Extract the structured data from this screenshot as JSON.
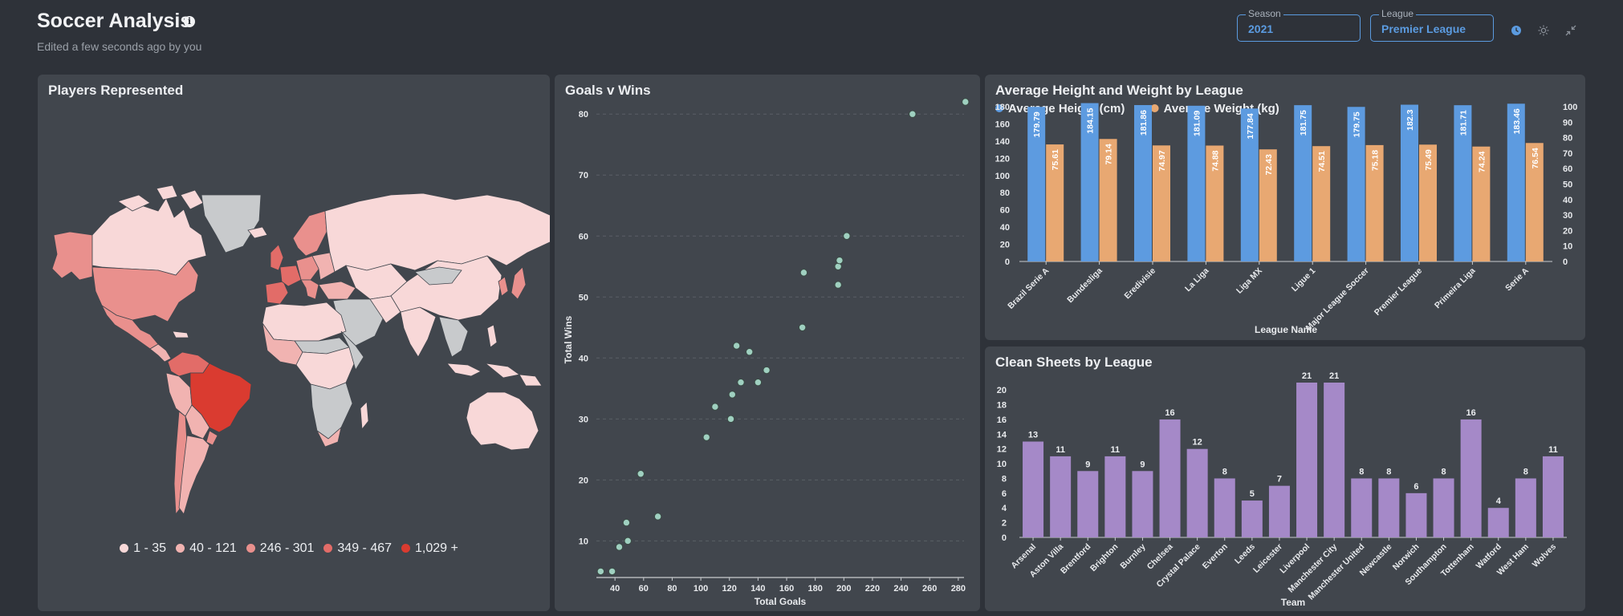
{
  "header": {
    "title": "Soccer Analysis",
    "subtitle": "Edited a few seconds ago by you",
    "info_icon": "info-icon",
    "filters": [
      {
        "label": "Season",
        "value": "2021"
      },
      {
        "label": "League",
        "value": "Premier League"
      }
    ],
    "icons": [
      "clock-icon",
      "sun-icon",
      "collapse-icon"
    ]
  },
  "colors": {
    "background": "#2e3239",
    "panel": "#41464d",
    "accent": "#5b9be0",
    "height_bar": "#5d9be0",
    "weight_bar": "#e8a872",
    "clean_sheets_bar": "#a589c8",
    "scatter_point": "#9fd0c0"
  },
  "map": {
    "title": "Players Represented",
    "legend": [
      {
        "label": "1 - 35",
        "color": "#f8d8d8"
      },
      {
        "label": "40 - 121",
        "color": "#f1b3b1"
      },
      {
        "label": "246 - 301",
        "color": "#e9908d"
      },
      {
        "label": "349 - 467",
        "color": "#e26c68"
      },
      {
        "label": "1,029 +",
        "color": "#da3b30"
      }
    ]
  },
  "chart_data": [
    {
      "type": "scatter",
      "title": "Goals v Wins",
      "xlabel": "Total Goals",
      "ylabel": "Total Wins",
      "xlim": [
        27,
        284
      ],
      "ylim": [
        4,
        82
      ],
      "xticks": [
        40,
        60,
        80,
        100,
        120,
        140,
        160,
        180,
        200,
        220,
        240,
        260,
        280
      ],
      "yticks": [
        10,
        20,
        30,
        40,
        50,
        60,
        70,
        80
      ],
      "points": [
        [
          30,
          5
        ],
        [
          38,
          5
        ],
        [
          43,
          9
        ],
        [
          48,
          13
        ],
        [
          49,
          10
        ],
        [
          58,
          21
        ],
        [
          70,
          14
        ],
        [
          104,
          27
        ],
        [
          110,
          32
        ],
        [
          121,
          30
        ],
        [
          122,
          34
        ],
        [
          125,
          42
        ],
        [
          128,
          36
        ],
        [
          134,
          41
        ],
        [
          140,
          36
        ],
        [
          146,
          38
        ],
        [
          171,
          45
        ],
        [
          172,
          54
        ],
        [
          196,
          52
        ],
        [
          196,
          55
        ],
        [
          197,
          56
        ],
        [
          202,
          60
        ],
        [
          248,
          80
        ],
        [
          285,
          82
        ]
      ]
    },
    {
      "type": "bar",
      "title": "Average Height and Weight by League",
      "xlabel": "League Name",
      "legend_position": "top-left",
      "categories": [
        "Brazil Serie A",
        "Bundesliga",
        "Eredivisie",
        "La Liga",
        "Liga MX",
        "Ligue 1",
        "Major League Soccer",
        "Premier League",
        "Primeira Liga",
        "Serie A"
      ],
      "series": [
        {
          "name": "Average Height (cm)",
          "values": [
            179.79,
            184.15,
            181.86,
            181.09,
            177.84,
            181.75,
            179.75,
            182.3,
            181.71,
            183.46
          ],
          "axis": "left"
        },
        {
          "name": "Average Weight (kg)",
          "values": [
            75.61,
            79.14,
            74.97,
            74.88,
            72.43,
            74.51,
            75.18,
            75.49,
            74.24,
            76.54
          ],
          "axis": "right"
        }
      ],
      "ylim_left": [
        0,
        180
      ],
      "ylim_right": [
        0,
        100
      ],
      "yticks_left": [
        0,
        20,
        40,
        60,
        80,
        100,
        120,
        140,
        160,
        180
      ],
      "yticks_right": [
        0,
        10,
        20,
        30,
        40,
        50,
        60,
        70,
        80,
        90,
        100
      ]
    },
    {
      "type": "bar",
      "title": "Clean Sheets by League",
      "xlabel": "Team",
      "categories": [
        "Arsenal",
        "Aston Villa",
        "Brentford",
        "Brighton",
        "Burnley",
        "Chelsea",
        "Crystal Palace",
        "Everton",
        "Leeds",
        "Leicester",
        "Liverpool",
        "Manchester City",
        "Manchester United",
        "Newcastle",
        "Norwich",
        "Southampton",
        "Tottenham",
        "Watford",
        "West Ham",
        "Wolves"
      ],
      "values": [
        13,
        11,
        9,
        11,
        9,
        16,
        12,
        8,
        5,
        7,
        21,
        21,
        8,
        8,
        6,
        8,
        16,
        4,
        8,
        11
      ],
      "ylim": [
        0,
        21
      ],
      "yticks": [
        0,
        2,
        4,
        6,
        8,
        10,
        12,
        14,
        16,
        18,
        20
      ]
    }
  ]
}
